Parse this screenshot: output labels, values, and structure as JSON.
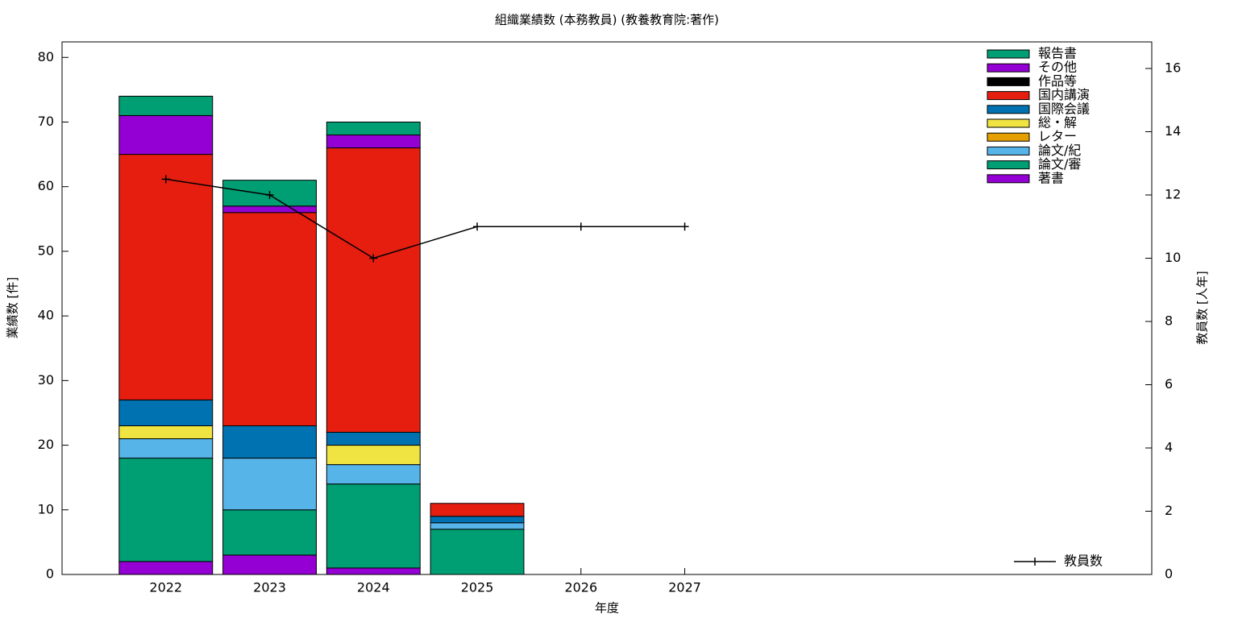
{
  "chart_data": {
    "type": "bar",
    "stacked": true,
    "title": "組織業績数 (本務教員) (教養教育院:著作)",
    "xlabel": "年度",
    "ylabel": "業績数 [件]",
    "y2label": "教員数 [人年]",
    "categories": [
      "2022",
      "2023",
      "2024",
      "2025",
      "2026",
      "2027"
    ],
    "ylim": [
      0,
      82.4
    ],
    "yticks": [
      0,
      10,
      20,
      30,
      40,
      50,
      60,
      70,
      80
    ],
    "y2lim": [
      0,
      16.84
    ],
    "y2ticks": [
      0,
      2,
      4,
      6,
      8,
      10,
      12,
      14,
      16
    ],
    "legend": "upper right",
    "series": [
      {
        "name": "著書",
        "color": "#9400d3",
        "values": [
          2,
          3,
          1,
          0,
          null,
          null
        ]
      },
      {
        "name": "論文/審",
        "color": "#009e73",
        "values": [
          16,
          7,
          13,
          7,
          null,
          null
        ]
      },
      {
        "name": "論文/紀",
        "color": "#56b4e9",
        "values": [
          3,
          8,
          3,
          1,
          null,
          null
        ]
      },
      {
        "name": "レター",
        "color": "#e69f00",
        "values": [
          0,
          0,
          0,
          0,
          null,
          null
        ]
      },
      {
        "name": "総・解",
        "color": "#f0e442",
        "values": [
          2,
          0,
          3,
          0,
          null,
          null
        ]
      },
      {
        "name": "国際会議",
        "color": "#0072b2",
        "values": [
          4,
          5,
          2,
          1,
          null,
          null
        ]
      },
      {
        "name": "国内講演",
        "color": "#e51e10",
        "values": [
          38,
          33,
          44,
          2,
          null,
          null
        ]
      },
      {
        "name": "作品等",
        "color": "#000000",
        "values": [
          0,
          0,
          0,
          0,
          null,
          null
        ]
      },
      {
        "name": "その他",
        "color": "#9400d3",
        "values": [
          6,
          1,
          2,
          0,
          null,
          null
        ]
      },
      {
        "name": "報告書",
        "color": "#009e73",
        "values": [
          3,
          4,
          2,
          0,
          null,
          null
        ]
      },
      {
        "name": "教員数",
        "type": "line",
        "axis": "y2",
        "color": "#000000",
        "values": [
          12.5,
          12,
          10,
          11,
          11,
          11
        ]
      }
    ]
  }
}
